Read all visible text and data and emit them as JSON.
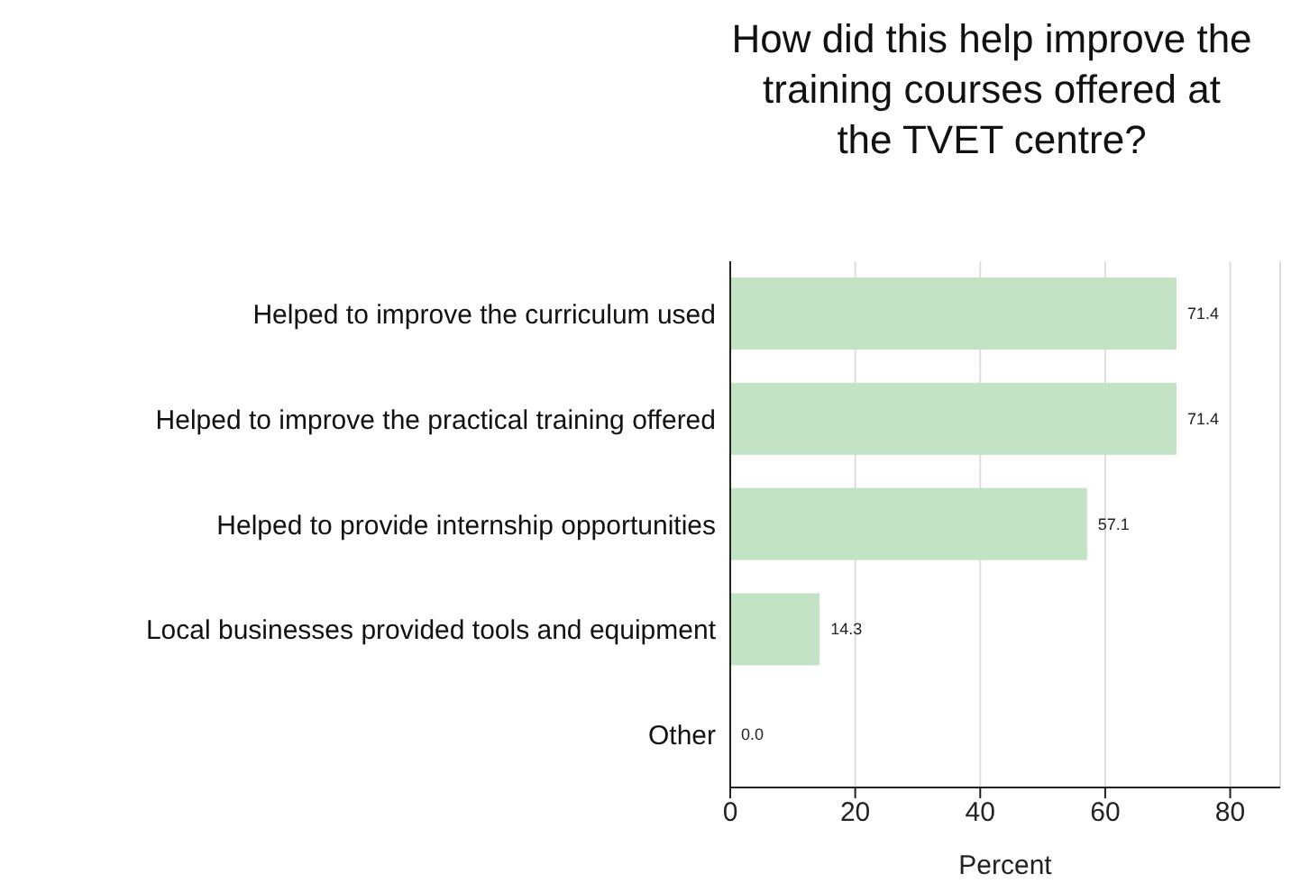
{
  "chart_data": {
    "type": "bar",
    "orientation": "horizontal",
    "title": "How did this help improve the training courses offered at the TVET centre?",
    "xlabel": "Percent",
    "categories": [
      "Helped to improve the curriculum used",
      "Helped to improve the practical training offered",
      "Helped to provide internship opportunities",
      "Local businesses provided tools and equipment",
      "Other"
    ],
    "values": [
      71.4,
      71.4,
      57.1,
      14.3,
      0.0
    ],
    "color": "#c4e3c4",
    "xlim": [
      0,
      88
    ],
    "xticks": [
      0,
      20,
      40,
      60,
      80
    ],
    "grid": "x",
    "value_labels": [
      "71.4",
      "71.4",
      "57.1",
      "14.3",
      "0.0"
    ]
  }
}
